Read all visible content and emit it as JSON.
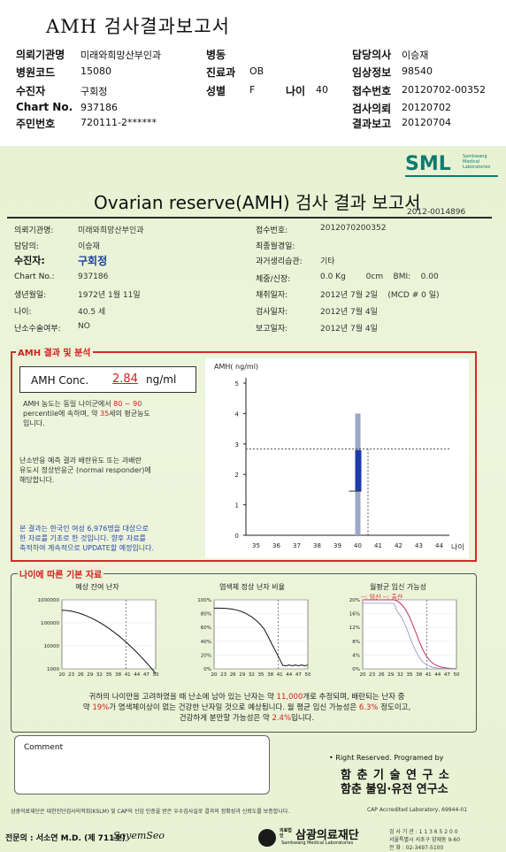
{
  "header": {
    "title": "AMH 검사결과보고서",
    "rows": [
      {
        "k1": "의뢰기관명",
        "v1": "미래와희망산부인과",
        "k2": "병동",
        "v2": "",
        "k3": "",
        "v3": "",
        "k4": "담당의사",
        "v4": "이승재"
      },
      {
        "k1": "병원코드",
        "v1": "15080",
        "k2": "진료과",
        "v2": "OB",
        "k3": "",
        "v3": "",
        "k4": "임상정보",
        "v4": "98540"
      },
      {
        "k1": "수진자",
        "v1": "구회정",
        "k2": "성별",
        "v2": "F",
        "k3": "나이",
        "v3": "40",
        "k4": "접수번호",
        "v4": "20120702-00352"
      },
      {
        "k1": "Chart No.",
        "v1": "937186",
        "k2": "",
        "v2": "",
        "k3": "",
        "v3": "",
        "k4": "검사의뢰",
        "v4": "20120702"
      },
      {
        "k1": "주민번호",
        "v1": "720111-2******",
        "k2": "",
        "v2": "",
        "k3": "",
        "v3": "",
        "k4": "결과보고",
        "v4": "20120704"
      }
    ]
  },
  "report": {
    "logo": "SML",
    "logo_sub": "Samkwang Medical Laboratories",
    "title": "Ovarian reserve(AMH) 검사 결과 보고서",
    "number": "2012-0014896",
    "left_info": [
      {
        "k": "의뢰기관명:",
        "v": "미래와희망산부인과"
      },
      {
        "k": "담당의:",
        "v": "이승재"
      },
      {
        "k": "수진자:",
        "v": "구회정"
      },
      {
        "k": "Chart No.:",
        "v": "937186"
      },
      {
        "k": "생년월일:",
        "v": "1972년 1월 11일"
      },
      {
        "k": "나이:",
        "v": "40.5 세"
      },
      {
        "k": "난소수술여부:",
        "v": "NO"
      }
    ],
    "right_info": [
      {
        "k": "접수번호:",
        "v": "2012070200352"
      },
      {
        "k": "최종월경일:",
        "v": ""
      },
      {
        "k": "과거생리습관:",
        "v": "기타"
      },
      {
        "k": "체중/신장:",
        "v": "0.0 Kg        0cm    BMI:    0.00"
      },
      {
        "k": "채취일자:",
        "v": "2012년 7월 2일    (MCD # 0 일)"
      },
      {
        "k": "검사일자:",
        "v": "2012년 7월 4일"
      },
      {
        "k": "보고일자:",
        "v": "2012년 7월 4일"
      }
    ],
    "amh_section_title": "AMH 결과 및 분석",
    "amh_conc_label": "AMH Conc.",
    "amh_conc_value": "2.84",
    "amh_conc_unit": "ng/ml",
    "para1_a": "AMH 농도는 동일 나이군에서",
    "para1_b": "80 ~  90",
    "para1_c": "percentile에 속하며, 약",
    "para1_d": "35",
    "para1_e": "세의 평균농도",
    "para1_f": "입니다.",
    "para2_a": "난소반응 예측 결과 배란유도 또는 과배란",
    "para2_b": "유도시 정상반응군 (normal responder)에",
    "para2_c": "해당합니다.",
    "para3_a": "본 결과는 한국인 여성 6,976명을 대상으로",
    "para3_b": "한 자료를 기초로 한 것입니다. 향후 자료를",
    "para3_c": "축적하여 계속적으로 UPDATE할 예정입니다.",
    "age_section_title": "나이에 따른 기본 자료",
    "mini1_title": "예상 잔여 난자",
    "mini2_title": "염색체 정상 난자 비율",
    "mini3_title": "월평균 임신 가능성",
    "mini3_legend": "--: 임신 --: 출산",
    "summary_a": "귀하의 나이만을 고려하였을 때 난소에 남아 있는 난자는 약",
    "summary_b": "11,000",
    "summary_c": "개로 추정되며, 배란되는 난자 중",
    "summary_d": "약",
    "summary_e": "19%",
    "summary_f": "가 염색체이상이 없는 건강한 난자일 것으로 예상됩니다. 월 평균 임신 가능성은",
    "summary_g": "6.3%",
    "summary_h": "정도이고,",
    "summary_i": "건강하게 분만할 가능성은 약",
    "summary_j": "2.4%",
    "summary_k": "입니다.",
    "comment_label": "Comment",
    "rights": "• Right Reserved. Programed by",
    "org1": "함 춘 기 술 연 구 소",
    "org2": "함춘 불임·유전 연구소",
    "footer_note": "삼광의료재단은 대한진단검사의학회(KSLM) 및 CAP의 신임 인증을 받은 우수검사실로 결과의 정확성과 신뢰도를 보증합니다.",
    "cap": "CAP  Accredited  Laboratory,  69944-01",
    "doctor": "전문의 : 서소연 M.D. (제 711호)",
    "signature": "SoyemSeo",
    "foundation": "삼광의료재단",
    "foundation_sub": "Samkwang Medical Laboratories",
    "foundation_prefix": "의료법인",
    "reg": "검 사 기 관 : 1 1 3 6 5 2 0 0",
    "addr": "서울특별시 서초구 양재동 9-60",
    "tel": "전  화 : 02-3497-5100"
  },
  "chart_data": {
    "type": "scatter",
    "ylabel": "AMH( ng/ml)",
    "xlabel": "나이",
    "x_ticks": [
      35,
      36,
      37,
      38,
      39,
      40,
      41,
      42,
      43,
      44
    ],
    "y_ticks": [
      0,
      1,
      2,
      3,
      4,
      5
    ],
    "ylim": [
      0,
      5
    ],
    "range_bar": {
      "x": 40,
      "low": 0,
      "high": 4.0
    },
    "iqr_bar": {
      "x": 40,
      "low": 1.45,
      "high": 2.8
    },
    "median": {
      "x": 40,
      "value": 1.45
    },
    "patient": {
      "age": 40.5,
      "amh": 2.84
    },
    "colors": {
      "range": "#9aa8c8",
      "iqr": "#1c3aa8",
      "line": "#333333"
    }
  },
  "mini_charts": [
    {
      "type": "line",
      "y_ticks": [
        "1000",
        "10000",
        "100000",
        "1000000"
      ],
      "x_ticks": [
        "20",
        "23",
        "26",
        "29",
        "32",
        "35",
        "38",
        "41",
        "44",
        "47",
        "50"
      ]
    },
    {
      "type": "line",
      "y_ticks": [
        "0%",
        "20%",
        "40%",
        "60%",
        "80%",
        "100%"
      ],
      "x_ticks": [
        "20",
        "23",
        "26",
        "29",
        "32",
        "35",
        "38",
        "41",
        "44",
        "47",
        "50"
      ]
    },
    {
      "type": "line",
      "y_ticks": [
        "0%",
        "4%",
        "8%",
        "12%",
        "16%",
        "20%"
      ],
      "x_ticks": [
        "20",
        "23",
        "26",
        "29",
        "32",
        "35",
        "38",
        "41",
        "44",
        "47",
        "50"
      ]
    }
  ]
}
